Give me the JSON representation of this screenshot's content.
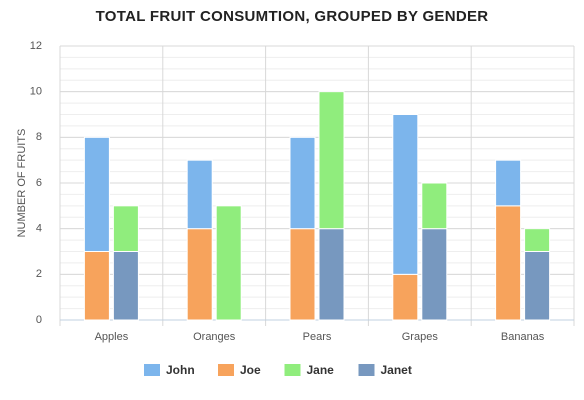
{
  "chart_data": {
    "type": "stacked_grouped_bar",
    "title": "TOTAL FRUIT CONSUMTION, GROUPED BY GENDER",
    "y_label": "NUMBER OF FRUITS",
    "categories": [
      "Apples",
      "Oranges",
      "Pears",
      "Grapes",
      "Bananas"
    ],
    "series": [
      {
        "name": "John",
        "color": "#7cb5ec",
        "stack": 0,
        "values": [
          5,
          3,
          4,
          7,
          2
        ]
      },
      {
        "name": "Joe",
        "color": "#f7a35c",
        "stack": 0,
        "values": [
          3,
          4,
          4,
          2,
          5
        ]
      },
      {
        "name": "Jane",
        "color": "#90ed7d",
        "stack": 1,
        "values": [
          2,
          5,
          6,
          2,
          1
        ]
      },
      {
        "name": "Janet",
        "color": "#7798bf",
        "stack": 1,
        "values": [
          3,
          0,
          4,
          4,
          3
        ]
      }
    ],
    "ylim": [
      0,
      12
    ],
    "yticks": [
      0,
      2,
      4,
      6,
      8,
      10,
      12
    ],
    "minor_tick_interval": 0.5,
    "grid": true
  }
}
